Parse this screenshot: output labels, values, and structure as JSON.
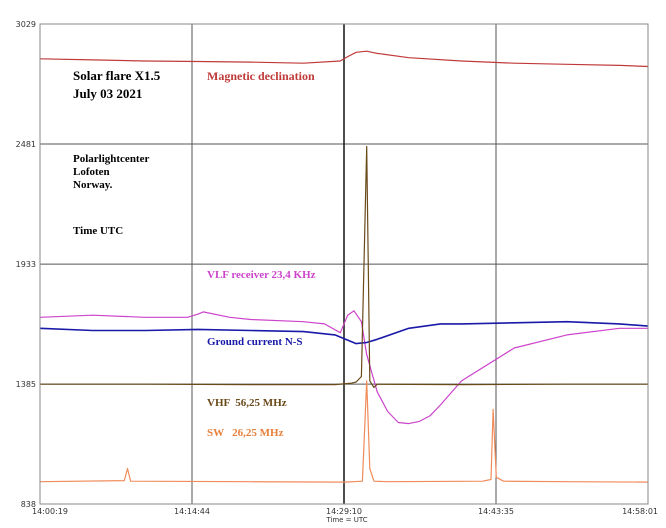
{
  "chart_data": {
    "type": "line",
    "title": "Solar flare X1.5",
    "subtitle": "July 03 2021",
    "info_lines": [
      "Polarlightcenter",
      "Lofoten",
      "Norway."
    ],
    "time_label": "Time UTC",
    "xlabel": "Time = UTC",
    "x_ticks": [
      "14:00:19",
      "14:14:44",
      "14:29:10",
      "14:43:35",
      "14:58:01"
    ],
    "y_ticks": [
      "3029",
      "2481",
      "1933",
      "1385",
      "838"
    ],
    "ylim": [
      838,
      3029
    ],
    "grid": true,
    "event_marker_time": "14:29:10",
    "series": [
      {
        "name": "Magnetic declination",
        "color": "#c03a3a",
        "x_min": [
          0,
          5,
          10,
          15,
          20,
          25,
          28.5,
          29.2,
          30,
          31,
          32,
          35,
          40,
          45,
          50,
          55,
          57.7
        ],
        "values": [
          2870,
          2865,
          2860,
          2858,
          2855,
          2850,
          2860,
          2880,
          2900,
          2905,
          2895,
          2875,
          2860,
          2850,
          2845,
          2840,
          2835
        ]
      },
      {
        "name": "VLF receiver 23,4 KHz",
        "color": "#cc44cc",
        "x_min": [
          0,
          5,
          10,
          14,
          15,
          15.5,
          18,
          20,
          25,
          27,
          28.5,
          29.2,
          29.8,
          30.5,
          31,
          32,
          33,
          34,
          35,
          36,
          37,
          38,
          40,
          45,
          50,
          55,
          57.7
        ],
        "values": [
          1690,
          1700,
          1690,
          1690,
          1705,
          1715,
          1690,
          1680,
          1670,
          1660,
          1620,
          1700,
          1720,
          1670,
          1520,
          1350,
          1260,
          1210,
          1205,
          1215,
          1240,
          1290,
          1400,
          1550,
          1610,
          1640,
          1640
        ]
      },
      {
        "name": "Ground current N-S",
        "color": "#1a1aa8",
        "x_min": [
          0,
          5,
          10,
          15,
          20,
          25,
          28,
          30,
          31,
          32,
          35,
          38,
          40,
          45,
          50,
          55,
          57.7
        ],
        "values": [
          1640,
          1630,
          1630,
          1635,
          1630,
          1625,
          1610,
          1570,
          1575,
          1590,
          1640,
          1660,
          1660,
          1665,
          1670,
          1660,
          1650
        ]
      },
      {
        "name": "VHF  56,25 MHz",
        "color": "#6b4a1a",
        "x_min": [
          0,
          10,
          20,
          28,
          29.6,
          30,
          30.5,
          31,
          31.3,
          31.7,
          32,
          40,
          50,
          57.7
        ],
        "values": [
          1385,
          1385,
          1383,
          1383,
          1390,
          1395,
          1420,
          2470,
          1400,
          1370,
          1385,
          1383,
          1385,
          1385
        ]
      },
      {
        "name": "SW   26,25 MHz",
        "color": "#f08c5a",
        "x_min": [
          0,
          8,
          8.3,
          8.6,
          20,
          29,
          30.6,
          31,
          31.3,
          31.7,
          33,
          42,
          42.8,
          43,
          43.3,
          44,
          50,
          57.7
        ],
        "values": [
          940,
          945,
          1000,
          942,
          940,
          938,
          942,
          1400,
          1000,
          942,
          940,
          942,
          950,
          1270,
          960,
          942,
          940,
          938
        ]
      }
    ]
  }
}
